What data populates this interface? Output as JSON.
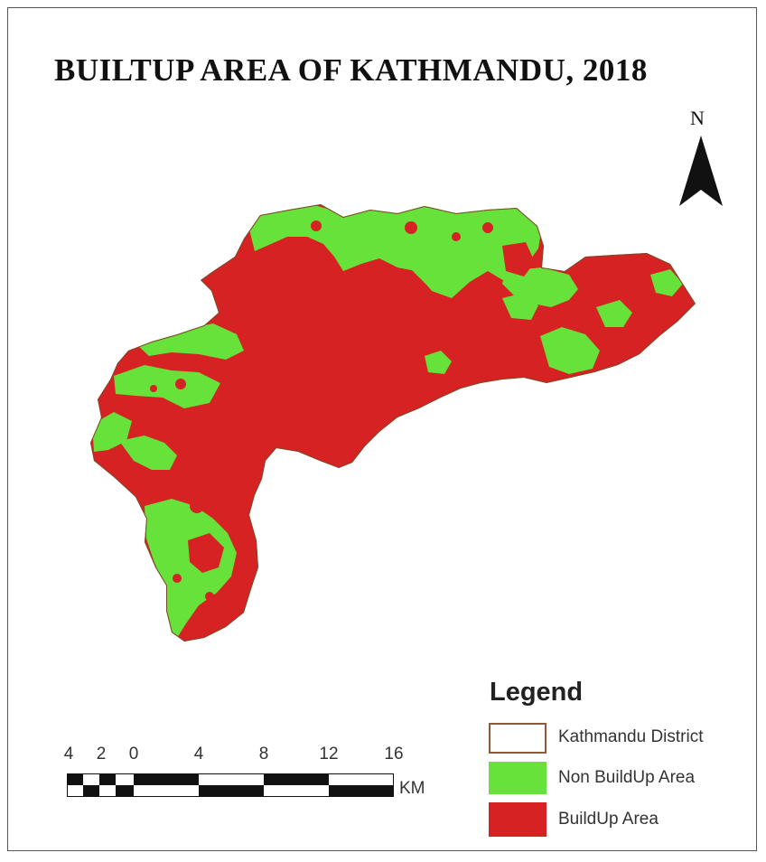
{
  "title": "BUILTUP AREA OF KATHMANDU, 2018",
  "north_label": "N",
  "colors": {
    "builtup": "#d62222",
    "non_builtup": "#66e23a",
    "boundary": "#7a4a2a"
  },
  "legend": {
    "title": "Legend",
    "items": [
      {
        "label": "Kathmandu District",
        "color": "#ffffff"
      },
      {
        "label": "Non BuildUp Area",
        "color": "#66e23a"
      },
      {
        "label": "BuildUp Area",
        "color": "#d62222"
      }
    ]
  },
  "scale_bar": {
    "ticks": [
      "4",
      "2",
      "0",
      "4",
      "8",
      "12",
      "16"
    ],
    "unit": "KM"
  }
}
